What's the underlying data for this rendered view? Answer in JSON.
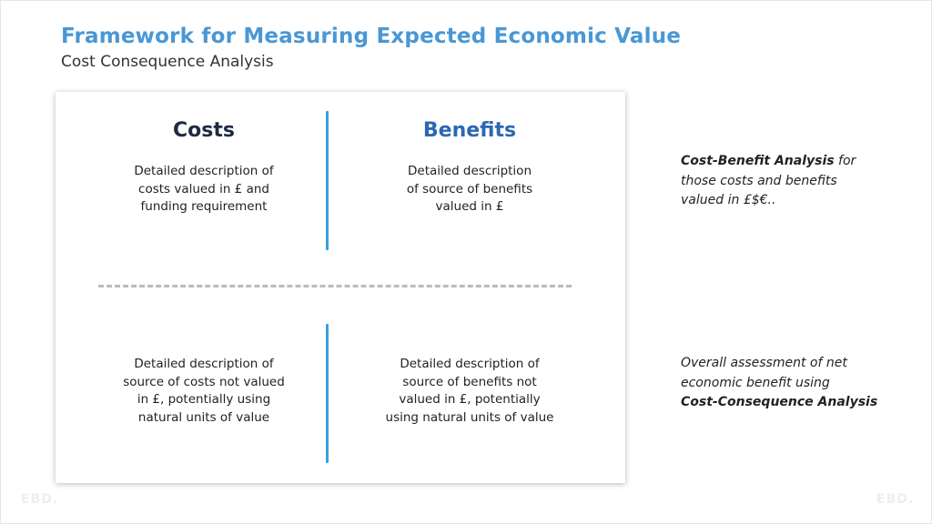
{
  "slide": {
    "title": "Framework for Measuring Expected Economic Value",
    "subtitle": "Cost Consequence Analysis"
  },
  "framework": {
    "costs_heading": "Costs",
    "benefits_heading": "Benefits",
    "top_left_lines": [
      "Detailed description of",
      "costs valued in £ and",
      "funding requirement"
    ],
    "top_right_lines": [
      "Detailed description",
      "of source of benefits",
      "valued in £"
    ],
    "bottom_left_lines": [
      "Detailed description of",
      "source of costs not valued",
      "in £, potentially using",
      "natural units of value"
    ],
    "bottom_right_lines": [
      "Detailed description of",
      "source of benefits not",
      "valued in £, potentially",
      "using natural units of value"
    ]
  },
  "side_notes": {
    "top_bold": "Cost-Benefit Analysis",
    "top_line1_rest": " for",
    "top_line2": "those costs and benefits",
    "top_line3": "valued in £$€..",
    "bottom_line1": "Overall assessment of net",
    "bottom_line2": "economic benefit using",
    "bottom_bold": "Cost-Consequence Analysis"
  },
  "watermark": {
    "left": "EBD.",
    "right": "EBD."
  },
  "colors": {
    "title": "#4a97d4",
    "costs_heading": "#1f2a44",
    "benefits_heading": "#2c68b0",
    "divider_vertical": "#3aa0dc",
    "divider_dashed": "#bbbbbb"
  }
}
